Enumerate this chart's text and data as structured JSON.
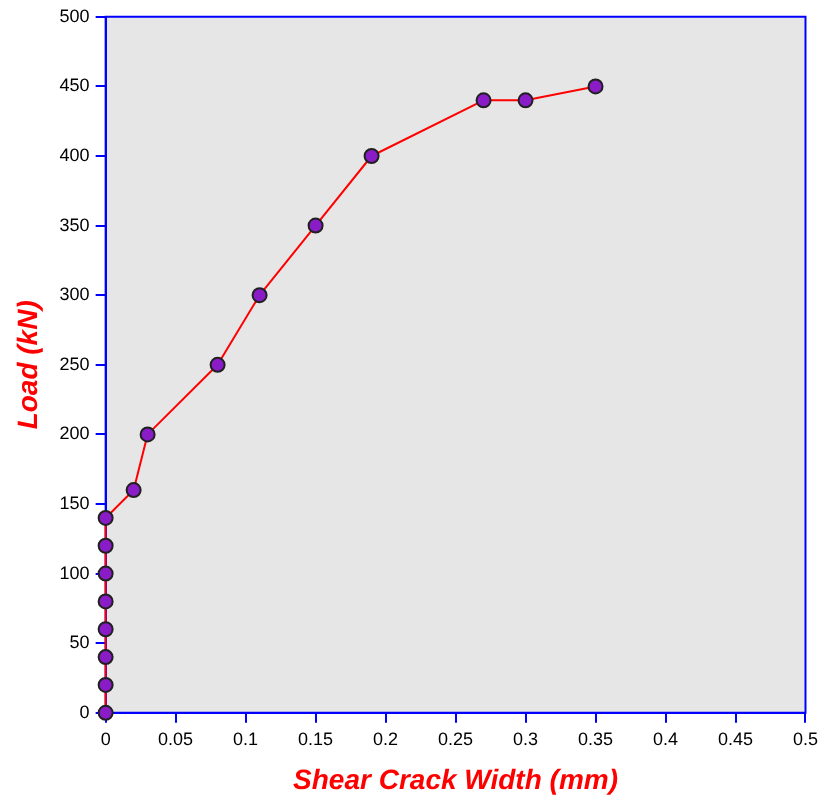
{
  "chart_data": {
    "type": "line",
    "xlabel": "Shear Crack Width (mm)",
    "ylabel": "Load (kN)",
    "series": [
      {
        "color": "#ff0000",
        "x": [
          0,
          0,
          0,
          0,
          0,
          0,
          0,
          0,
          0.02,
          0.03,
          0.08,
          0.11,
          0.15,
          0.19,
          0.27,
          0.3,
          0.35
        ],
        "values": [
          0,
          20,
          40,
          60,
          80,
          100,
          120,
          140,
          160,
          200,
          250,
          300,
          350,
          400,
          440,
          440,
          450
        ]
      }
    ],
    "xlim": [
      0,
      0.5
    ],
    "xticks": [
      0,
      0.05,
      0.1,
      0.15,
      0.2,
      0.25,
      0.3,
      0.35,
      0.4,
      0.45,
      0.5
    ],
    "ylim": [
      0,
      500
    ],
    "yticks": [
      0,
      50,
      100,
      150,
      200,
      250,
      300,
      350,
      400,
      450,
      500
    ],
    "grid": false,
    "legend": false,
    "marker": "circle",
    "line_style": "solid"
  }
}
